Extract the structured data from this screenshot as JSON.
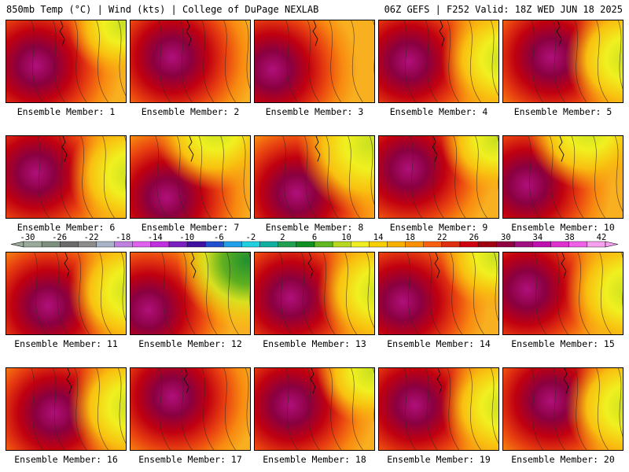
{
  "header": {
    "left": "850mb Temp (°C) | Wind (kts) | College of DuPage NEXLAB",
    "right": "06Z GEFS | F252 Valid: 18Z WED JUN 18 2025"
  },
  "members": [
    {
      "label": "Ensemble Member: 1",
      "hot": [
        0.25,
        0.55
      ],
      "cool": "tr"
    },
    {
      "label": "Ensemble Member: 2",
      "hot": [
        0.35,
        0.45
      ],
      "cool": "none"
    },
    {
      "label": "Ensemble Member: 3",
      "hot": [
        0.15,
        0.6
      ],
      "cool": "none"
    },
    {
      "label": "Ensemble Member: 4",
      "hot": [
        0.25,
        0.5
      ],
      "cool": "right"
    },
    {
      "label": "Ensemble Member: 5",
      "hot": [
        0.4,
        0.45
      ],
      "cool": "right"
    },
    {
      "label": "Ensemble Member: 6",
      "hot": [
        0.25,
        0.45
      ],
      "cool": "right"
    },
    {
      "label": "Ensemble Member: 7",
      "hot": [
        0.3,
        0.75
      ],
      "cool": "top"
    },
    {
      "label": "Ensemble Member: 8",
      "hot": [
        0.35,
        0.7
      ],
      "cool": "topright"
    },
    {
      "label": "Ensemble Member: 9",
      "hot": [
        0.25,
        0.4
      ],
      "cool": "tr"
    },
    {
      "label": "Ensemble Member: 10",
      "hot": [
        0.2,
        0.6
      ],
      "cool": "top"
    },
    {
      "label": "Ensemble Member: 11",
      "hot": [
        0.35,
        0.65
      ],
      "cool": "right"
    },
    {
      "label": "Ensemble Member: 12",
      "hot": [
        0.15,
        0.7
      ],
      "cool": "green"
    },
    {
      "label": "Ensemble Member: 13",
      "hot": [
        0.3,
        0.55
      ],
      "cool": "right"
    },
    {
      "label": "Ensemble Member: 14",
      "hot": [
        0.2,
        0.6
      ],
      "cool": "tr"
    },
    {
      "label": "Ensemble Member: 15",
      "hot": [
        0.2,
        0.45
      ],
      "cool": "right"
    },
    {
      "label": "Ensemble Member: 16",
      "hot": [
        0.4,
        0.55
      ],
      "cool": "right"
    },
    {
      "label": "Ensemble Member: 17",
      "hot": [
        0.35,
        0.35
      ],
      "cool": "none"
    },
    {
      "label": "Ensemble Member: 18",
      "hot": [
        0.3,
        0.45
      ],
      "cool": "tr"
    },
    {
      "label": "Ensemble Member: 19",
      "hot": [
        0.3,
        0.45
      ],
      "cool": "right"
    },
    {
      "label": "Ensemble Member: 20",
      "hot": [
        0.4,
        0.4
      ],
      "cool": "right"
    }
  ],
  "colorbar": {
    "labels": [
      "-30",
      "-26",
      "-22",
      "-18",
      "-14",
      "-10",
      "-6",
      "-2",
      "2",
      "6",
      "10",
      "14",
      "18",
      "22",
      "26",
      "30",
      "34",
      "38",
      "42"
    ],
    "colors": [
      "#9aaa9a",
      "#7d8f7d",
      "#6a6a6a",
      "#8c8c8c",
      "#a8b4c8",
      "#c080e0",
      "#e060f0",
      "#c030e0",
      "#7a20c0",
      "#4010a0",
      "#2050d0",
      "#20a0e8",
      "#20d0e0",
      "#10b0a0",
      "#20a050",
      "#109020",
      "#60b820",
      "#b8d820",
      "#f0f020",
      "#f8d000",
      "#f8b000",
      "#f89000",
      "#f86010",
      "#e03010",
      "#d00010",
      "#a00010",
      "#900040",
      "#a01080",
      "#c010b0",
      "#e030d0",
      "#f060e8",
      "#f8a0f0"
    ]
  }
}
